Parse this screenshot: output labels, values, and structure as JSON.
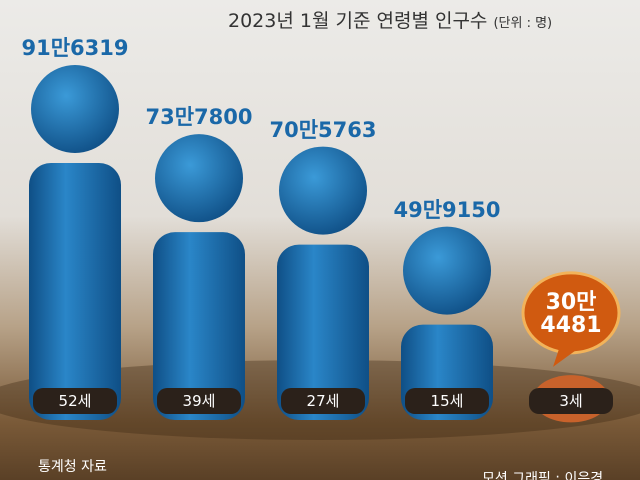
{
  "chart_data": {
    "type": "bar",
    "title": "2023년 1월 기준 연령별 인구수",
    "unit": "(단위 : 명)",
    "categories": [
      "52세",
      "39세",
      "27세",
      "15세",
      "3세"
    ],
    "values": [
      916319,
      737800,
      705763,
      499150,
      304481
    ],
    "value_labels": [
      "91만6319",
      "73만7800",
      "70만5763",
      "49만9150",
      "30만\n4481"
    ],
    "colors": [
      "#1f72b4",
      "#1f72b4",
      "#1f72b4",
      "#1f72b4",
      "#c8622b"
    ],
    "source": "통계청 자료",
    "credit": "모션 그래픽 : 이은경"
  }
}
